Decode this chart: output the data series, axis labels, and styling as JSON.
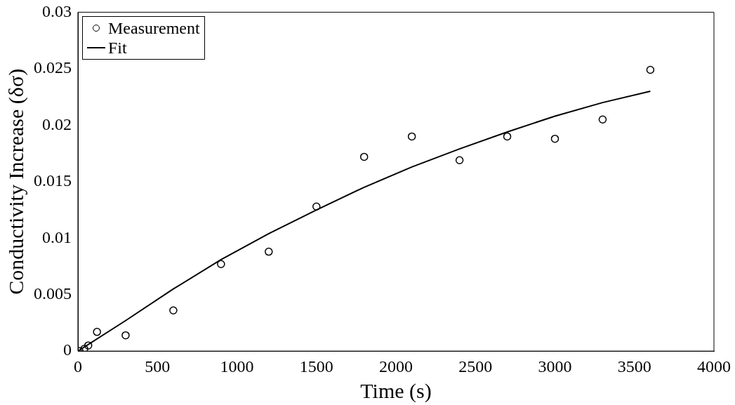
{
  "chart_data": {
    "type": "scatter",
    "xlabel": "Time (s)",
    "ylabel": "Conductivity Increase (δσ)",
    "xlim": [
      0,
      4000
    ],
    "xticks": [
      0,
      500,
      1000,
      1500,
      2000,
      2500,
      3000,
      3500,
      4000
    ],
    "ylim": [
      0,
      0.03
    ],
    "yticks": [
      0,
      0.005,
      0.01,
      0.015,
      0.02,
      0.025,
      0.03
    ],
    "grid": false,
    "legend": "top left",
    "series": [
      {
        "name": "Measurement",
        "type": "scatter",
        "marker": "circle",
        "color": "#000000",
        "x": [
          10,
          40,
          65,
          120,
          300,
          600,
          900,
          1200,
          1500,
          1800,
          2100,
          2400,
          2700,
          3000,
          3300,
          3600
        ],
        "values": [
          0,
          0.0002,
          0.0005,
          0.0017,
          0.0014,
          0.0036,
          0.0077,
          0.0088,
          0.0128,
          0.0172,
          0.019,
          0.0169,
          0.019,
          0.0188,
          0.0205,
          0.0249
        ]
      },
      {
        "name": "Fit",
        "type": "line",
        "marker": "none",
        "line_style": "solid",
        "color": "#000000",
        "x": [
          0,
          300,
          600,
          900,
          1200,
          1500,
          1800,
          2100,
          2400,
          2700,
          3000,
          3300,
          3600
        ],
        "values": [
          0,
          0.0027,
          0.0055,
          0.0081,
          0.0104,
          0.0125,
          0.0145,
          0.0163,
          0.0179,
          0.0194,
          0.0208,
          0.022,
          0.023
        ]
      }
    ]
  }
}
